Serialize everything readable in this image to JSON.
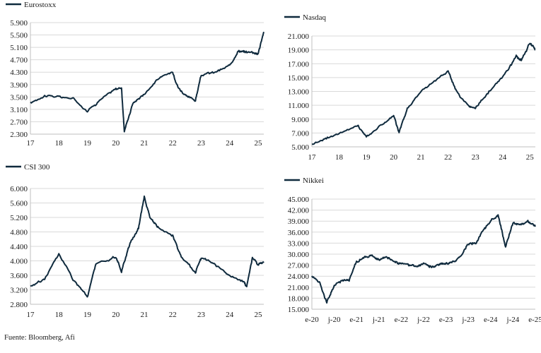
{
  "source": "Fuente: Bloomberg, Afi",
  "chart_data": [
    {
      "type": "line",
      "title": "",
      "series": [
        {
          "name": "Eurostoxx"
        }
      ],
      "x_tick_labels": [
        "17",
        "18",
        "19",
        "20",
        "21",
        "22",
        "23",
        "24",
        "25"
      ],
      "y_tick_labels": [
        "2.300",
        "2.700",
        "3.100",
        "3.500",
        "3.900",
        "4.300",
        "4.700",
        "5.100",
        "5.500",
        "5.900"
      ],
      "ylim": [
        2300,
        5900
      ],
      "grid": true,
      "legend_position": "top-left",
      "x": [
        2017.0,
        2017.5,
        2018.0,
        2018.5,
        2019.0,
        2019.5,
        2020.0,
        2020.2,
        2020.3,
        2020.6,
        2021.0,
        2021.5,
        2022.0,
        2022.2,
        2022.5,
        2022.8,
        2023.0,
        2023.5,
        2024.0,
        2024.3,
        2024.5,
        2024.8,
        2025.0,
        2025.2
      ],
      "values": [
        3300,
        3550,
        3500,
        3450,
        3050,
        3450,
        3750,
        3800,
        2400,
        3300,
        3600,
        4100,
        4300,
        3800,
        3500,
        3400,
        4200,
        4300,
        4500,
        5000,
        4950,
        4950,
        4900,
        5600
      ]
    },
    {
      "type": "line",
      "title": "",
      "series": [
        {
          "name": "Nasdaq"
        }
      ],
      "x_tick_labels": [
        "17",
        "18",
        "19",
        "20",
        "21",
        "22",
        "23",
        "24",
        "25"
      ],
      "y_tick_labels": [
        "5.000",
        "7.000",
        "9.000",
        "11.000",
        "13.000",
        "15.000",
        "17.000",
        "19.000",
        "21.000"
      ],
      "ylim": [
        5000,
        21000
      ],
      "grid": true,
      "legend_position": "top-left",
      "x": [
        2017.0,
        2017.5,
        2018.0,
        2018.7,
        2019.0,
        2019.5,
        2020.0,
        2020.2,
        2020.5,
        2021.0,
        2021.5,
        2022.0,
        2022.3,
        2022.7,
        2023.0,
        2023.5,
        2024.0,
        2024.5,
        2024.7,
        2025.0,
        2025.2
      ],
      "values": [
        5400,
        6200,
        7000,
        8000,
        6500,
        8000,
        9500,
        7000,
        10500,
        13000,
        14500,
        16000,
        13000,
        11000,
        10500,
        13000,
        15000,
        18000,
        17500,
        20000,
        19000
      ]
    },
    {
      "type": "line",
      "title": "",
      "series": [
        {
          "name": "CSI 300"
        }
      ],
      "x_tick_labels": [
        "17",
        "18",
        "19",
        "20",
        "21",
        "22",
        "23",
        "24",
        "25"
      ],
      "y_tick_labels": [
        "2.800",
        "3.200",
        "3.600",
        "4.000",
        "4.400",
        "4.800",
        "5.200",
        "5.600",
        "6.000"
      ],
      "ylim": [
        2800,
        6000
      ],
      "grid": true,
      "legend_position": "top-left",
      "x": [
        2017.0,
        2017.5,
        2018.0,
        2018.5,
        2019.0,
        2019.3,
        2020.0,
        2020.2,
        2020.5,
        2020.8,
        2021.0,
        2021.2,
        2021.5,
        2022.0,
        2022.3,
        2022.8,
        2023.0,
        2023.5,
        2024.0,
        2024.5,
        2024.6,
        2024.8,
        2025.0,
        2025.2
      ],
      "values": [
        3300,
        3500,
        4200,
        3500,
        3000,
        3900,
        4100,
        3700,
        4500,
        4900,
        5800,
        5200,
        4900,
        4700,
        4100,
        3700,
        4100,
        3900,
        3600,
        3400,
        3300,
        4100,
        3900,
        3950
      ]
    },
    {
      "type": "line",
      "title": "",
      "series": [
        {
          "name": "Nikkei"
        }
      ],
      "x_tick_labels": [
        "e-20",
        "j-20",
        "e-21",
        "j-21",
        "e-22",
        "j-22",
        "e-23",
        "j-23",
        "e-24",
        "j-24",
        "e-25"
      ],
      "y_tick_labels": [
        "15.000",
        "18.000",
        "21.000",
        "24.000",
        "27.000",
        "30.000",
        "33.000",
        "36.000",
        "39.000",
        "42.000",
        "45.000"
      ],
      "ylim": [
        15000,
        45000
      ],
      "grid": true,
      "legend_position": "top-left",
      "x": [
        0,
        1,
        2,
        3,
        4,
        5,
        6,
        7,
        8,
        9,
        10,
        11,
        12,
        13,
        14,
        15,
        16,
        17,
        18,
        19,
        20,
        21,
        22,
        23,
        24,
        25,
        26,
        27,
        28,
        29,
        30
      ],
      "values": [
        24000,
        22500,
        17000,
        21500,
        22800,
        23000,
        28000,
        29000,
        29500,
        28500,
        29000,
        28000,
        27500,
        27000,
        26500,
        27500,
        26500,
        27000,
        27500,
        28000,
        29500,
        33000,
        33000,
        36500,
        39000,
        40500,
        32000,
        38500,
        38000,
        39000,
        37500
      ]
    }
  ]
}
